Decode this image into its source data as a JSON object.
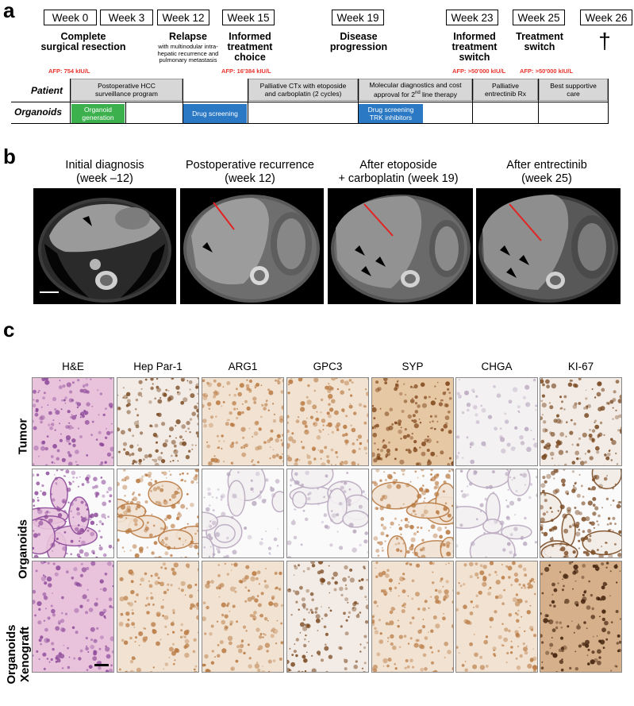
{
  "panels": {
    "a": "a",
    "b": "b",
    "c": "c"
  },
  "weeks": [
    "Week 0",
    "Week 3",
    "Week 12",
    "Week 15",
    "Week 19",
    "Week 23",
    "Week 25",
    "Week 26"
  ],
  "events": {
    "resection": "Complete\nsurgical resection",
    "relapse": "Relapse",
    "relapse_sub": "with multinodular intra-\nhepatic recurrence and\npulmonary metastasis",
    "informed": "Informed\ntreatment\nchoice",
    "progression": "Disease\nprogression",
    "switch": "Informed\ntreatment\nswitch",
    "treatment_switch": "Treatment\nswitch",
    "death": "†"
  },
  "afp": {
    "w0": "AFP: 754 kIU/L",
    "w15": "AFP: 16'384 kIU/L",
    "w23": "AFP: >50'000 kIU/L",
    "w25": "AFP: >50'000 kIU/L"
  },
  "rows": {
    "patient": "Patient",
    "organoids": "Organoids"
  },
  "patient_boxes": [
    "Postoperative HCC\nsurveillance program",
    "Palliative CTx with etoposide\nand carboplatin (2 cycles)",
    "Molecular diagnostics and cost\napproval for 2nd line therapy",
    "Palliative\nentrectinib Rx",
    "Best supportive\ncare"
  ],
  "organoid_boxes": [
    "Organoid\ngeneration",
    "Drug screening",
    "Drug screening\nTRK inhibitors"
  ],
  "ct_titles": [
    "Initial diagnosis\n(week –12)",
    "Postoperative recurrence\n(week 12)",
    "After etoposide\n+ carboplatin (week 19)",
    "After entrectinib\n(week 25)"
  ],
  "ihc_columns": [
    "H&E",
    "Hep Par-1",
    "ARG1",
    "GPC3",
    "SYP",
    "CHGA",
    "KI-67"
  ],
  "ihc_rows": [
    "Tumor",
    "Organoids",
    "Organoids\nXenograft"
  ],
  "colors": {
    "afp_red": "#e8332a",
    "organoid_green": "#3db04e",
    "screening_blue": "#2b79c4",
    "timeline_grey": "#d7d7d7",
    "arrow_red": "#e32222"
  }
}
